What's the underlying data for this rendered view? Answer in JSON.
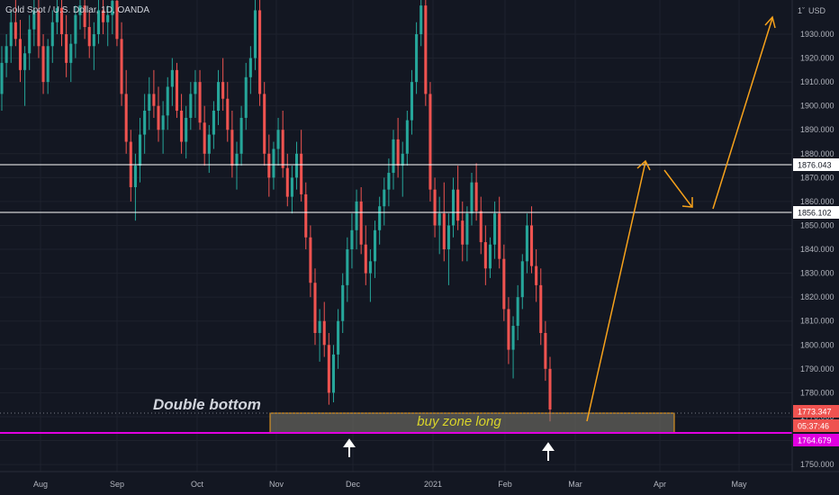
{
  "header": {
    "symbol_text": "Gold Spot / U.S. Dollar, 1D, OANDA",
    "currency": "USD",
    "price_scale_marker": "1ˇ"
  },
  "chart_data": {
    "type": "candlestick",
    "title": "Gold Spot / U.S. Dollar, 1D, OANDA",
    "ylim": [
      1745,
      1945
    ],
    "y_ticks": [
      1750,
      1760,
      1770,
      1780,
      1790,
      1800,
      1810,
      1820,
      1830,
      1840,
      1850,
      1860,
      1870,
      1880,
      1890,
      1900,
      1910,
      1920,
      1930
    ],
    "x_ticks": [
      "Aug",
      "Sep",
      "Oct",
      "Nov",
      "Dec",
      "2021",
      "Feb",
      "Mar",
      "Apr",
      "May"
    ],
    "price_labels": [
      {
        "value": "1876.043",
        "color": "#ffffff"
      },
      {
        "value": "1856.102",
        "color": "#ffffff"
      },
      {
        "value": "1773.347",
        "color": "#ef5350"
      },
      {
        "value": "05:37:46",
        "color": "#ef5350"
      },
      {
        "value": "1764.679",
        "color": "#e000e0"
      }
    ],
    "horizontal_lines": [
      {
        "value": 1876.043,
        "color": "#ffffff"
      },
      {
        "value": 1856.102,
        "color": "#ffffff"
      },
      {
        "value": 1764.679,
        "color": "#e000e0"
      }
    ],
    "zone": {
      "label": "buy zone long",
      "from": 1765,
      "to": 1773.5
    },
    "annotations": [
      "Double bottom"
    ],
    "colors": {
      "up": "#26a69a",
      "down": "#ef5350",
      "arrow": "#f7a21b",
      "zone_fill": "#807c70",
      "zone_border": "#f7a21b"
    },
    "candles": [
      [
        1905,
        1925,
        1898,
        1918
      ],
      [
        1918,
        1930,
        1912,
        1925
      ],
      [
        1925,
        1940,
        1918,
        1935
      ],
      [
        1935,
        1945,
        1925,
        1928
      ],
      [
        1928,
        1936,
        1910,
        1915
      ],
      [
        1915,
        1925,
        1900,
        1922
      ],
      [
        1922,
        1938,
        1915,
        1932
      ],
      [
        1932,
        1945,
        1925,
        1940
      ],
      [
        1940,
        1945,
        1920,
        1925
      ],
      [
        1925,
        1930,
        1905,
        1910
      ],
      [
        1910,
        1928,
        1905,
        1925
      ],
      [
        1925,
        1940,
        1918,
        1935
      ],
      [
        1935,
        1945,
        1930,
        1941
      ],
      [
        1941,
        1945,
        1925,
        1930
      ],
      [
        1930,
        1938,
        1912,
        1918
      ],
      [
        1918,
        1930,
        1910,
        1926
      ],
      [
        1926,
        1942,
        1920,
        1938
      ],
      [
        1938,
        1945,
        1932,
        1942
      ],
      [
        1942,
        1945,
        1928,
        1933
      ],
      [
        1933,
        1940,
        1920,
        1925
      ],
      [
        1925,
        1935,
        1915,
        1930
      ],
      [
        1930,
        1945,
        1926,
        1940
      ],
      [
        1940,
        1945,
        1930,
        1935
      ],
      [
        1935,
        1942,
        1925,
        1938
      ],
      [
        1938,
        1945,
        1930,
        1944
      ],
      [
        1944,
        1945,
        1925,
        1928
      ],
      [
        1928,
        1935,
        1900,
        1905
      ],
      [
        1905,
        1915,
        1880,
        1885
      ],
      [
        1885,
        1890,
        1860,
        1866
      ],
      [
        1866,
        1880,
        1852,
        1875
      ],
      [
        1875,
        1895,
        1868,
        1888
      ],
      [
        1888,
        1905,
        1880,
        1898
      ],
      [
        1898,
        1912,
        1890,
        1905
      ],
      [
        1905,
        1915,
        1895,
        1900
      ],
      [
        1900,
        1908,
        1885,
        1890
      ],
      [
        1890,
        1902,
        1880,
        1896
      ],
      [
        1896,
        1912,
        1890,
        1908
      ],
      [
        1908,
        1920,
        1900,
        1915
      ],
      [
        1915,
        1918,
        1895,
        1898
      ],
      [
        1898,
        1905,
        1880,
        1885
      ],
      [
        1885,
        1900,
        1878,
        1895
      ],
      [
        1895,
        1910,
        1890,
        1905
      ],
      [
        1905,
        1915,
        1895,
        1910
      ],
      [
        1910,
        1915,
        1890,
        1893
      ],
      [
        1893,
        1900,
        1875,
        1880
      ],
      [
        1880,
        1892,
        1872,
        1888
      ],
      [
        1888,
        1902,
        1882,
        1898
      ],
      [
        1898,
        1915,
        1892,
        1910
      ],
      [
        1910,
        1920,
        1898,
        1903
      ],
      [
        1903,
        1910,
        1885,
        1890
      ],
      [
        1890,
        1898,
        1870,
        1875
      ],
      [
        1875,
        1885,
        1865,
        1880
      ],
      [
        1880,
        1900,
        1875,
        1895
      ],
      [
        1895,
        1918,
        1890,
        1912
      ],
      [
        1912,
        1925,
        1905,
        1920
      ],
      [
        1920,
        1945,
        1915,
        1940
      ],
      [
        1940,
        1945,
        1900,
        1905
      ],
      [
        1905,
        1910,
        1875,
        1880
      ],
      [
        1880,
        1888,
        1862,
        1870
      ],
      [
        1870,
        1885,
        1865,
        1882
      ],
      [
        1882,
        1895,
        1875,
        1890
      ],
      [
        1890,
        1898,
        1870,
        1874
      ],
      [
        1874,
        1880,
        1858,
        1862
      ],
      [
        1862,
        1875,
        1855,
        1870
      ],
      [
        1870,
        1885,
        1865,
        1880
      ],
      [
        1880,
        1890,
        1860,
        1863
      ],
      [
        1863,
        1868,
        1840,
        1845
      ],
      [
        1845,
        1850,
        1820,
        1826
      ],
      [
        1826,
        1832,
        1800,
        1805
      ],
      [
        1805,
        1815,
        1793,
        1810
      ],
      [
        1810,
        1818,
        1795,
        1800
      ],
      [
        1800,
        1805,
        1775,
        1780
      ],
      [
        1780,
        1800,
        1776,
        1796
      ],
      [
        1796,
        1815,
        1790,
        1810
      ],
      [
        1810,
        1830,
        1805,
        1825
      ],
      [
        1825,
        1845,
        1818,
        1840
      ],
      [
        1840,
        1855,
        1832,
        1848
      ],
      [
        1848,
        1865,
        1840,
        1860
      ],
      [
        1860,
        1866,
        1838,
        1842
      ],
      [
        1842,
        1850,
        1825,
        1830
      ],
      [
        1830,
        1840,
        1818,
        1835
      ],
      [
        1835,
        1852,
        1828,
        1848
      ],
      [
        1848,
        1862,
        1842,
        1858
      ],
      [
        1858,
        1870,
        1850,
        1865
      ],
      [
        1865,
        1878,
        1858,
        1872
      ],
      [
        1872,
        1890,
        1865,
        1886
      ],
      [
        1886,
        1895,
        1870,
        1875
      ],
      [
        1875,
        1885,
        1862,
        1880
      ],
      [
        1880,
        1898,
        1875,
        1894
      ],
      [
        1894,
        1915,
        1888,
        1910
      ],
      [
        1910,
        1935,
        1905,
        1930
      ],
      [
        1930,
        1945,
        1925,
        1942
      ],
      [
        1942,
        1945,
        1900,
        1905
      ],
      [
        1905,
        1910,
        1860,
        1865
      ],
      [
        1865,
        1870,
        1845,
        1850
      ],
      [
        1850,
        1862,
        1838,
        1855
      ],
      [
        1855,
        1868,
        1835,
        1840
      ],
      [
        1840,
        1855,
        1825,
        1850
      ],
      [
        1850,
        1870,
        1845,
        1865
      ],
      [
        1865,
        1875,
        1848,
        1852
      ],
      [
        1852,
        1860,
        1835,
        1842
      ],
      [
        1842,
        1858,
        1835,
        1855
      ],
      [
        1855,
        1872,
        1850,
        1868
      ],
      [
        1868,
        1876,
        1852,
        1856
      ],
      [
        1856,
        1862,
        1838,
        1843
      ],
      [
        1843,
        1850,
        1825,
        1832
      ],
      [
        1832,
        1845,
        1828,
        1842
      ],
      [
        1842,
        1860,
        1836,
        1855
      ],
      [
        1855,
        1862,
        1832,
        1836
      ],
      [
        1836,
        1842,
        1810,
        1815
      ],
      [
        1815,
        1820,
        1792,
        1798
      ],
      [
        1798,
        1812,
        1786,
        1808
      ],
      [
        1808,
        1825,
        1802,
        1820
      ],
      [
        1820,
        1838,
        1815,
        1835
      ],
      [
        1835,
        1855,
        1830,
        1850
      ],
      [
        1850,
        1858,
        1830,
        1833
      ],
      [
        1833,
        1840,
        1818,
        1825
      ],
      [
        1825,
        1832,
        1800,
        1805
      ],
      [
        1805,
        1810,
        1785,
        1790
      ],
      [
        1790,
        1795,
        1768,
        1773
      ]
    ]
  }
}
